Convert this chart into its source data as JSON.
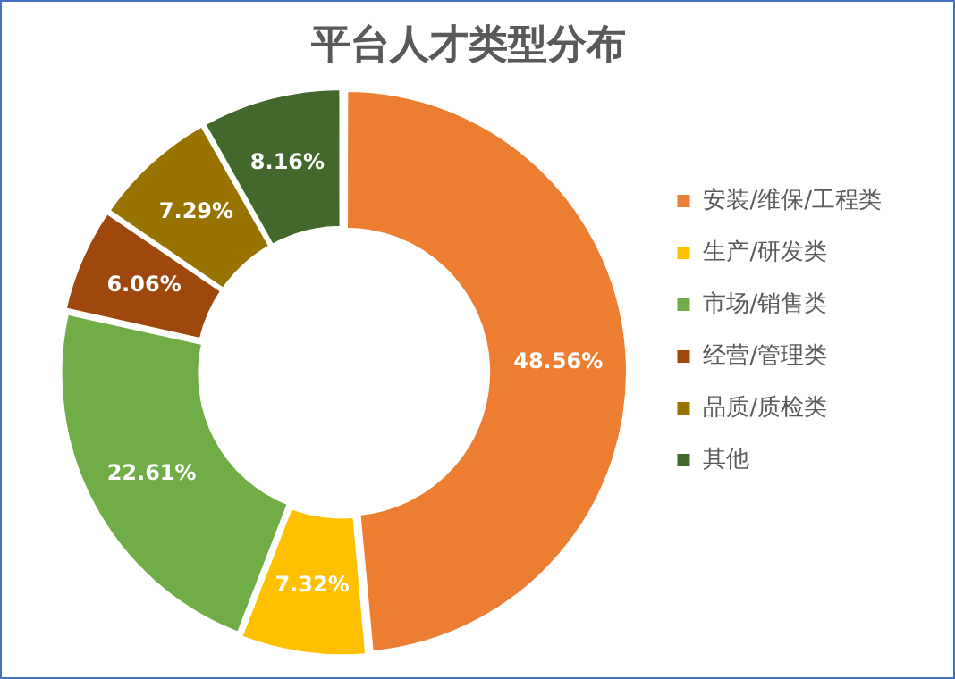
{
  "chart_data": {
    "type": "donut",
    "title": "平台人才类型分布",
    "categories": [
      "安装/维保/工程类",
      "生产/研发类",
      "市场/销售类",
      "经营/管理类",
      "品质/质检类",
      "其他"
    ],
    "values": [
      48.56,
      7.32,
      22.61,
      6.06,
      7.29,
      8.16
    ],
    "value_labels": [
      "48.56%",
      "7.32%",
      "22.61%",
      "6.06%",
      "7.29%",
      "8.16%"
    ],
    "colors": [
      "#ed7d31",
      "#ffc000",
      "#70ad47",
      "#9e480e",
      "#997300",
      "#43682b"
    ],
    "legend": "right"
  }
}
